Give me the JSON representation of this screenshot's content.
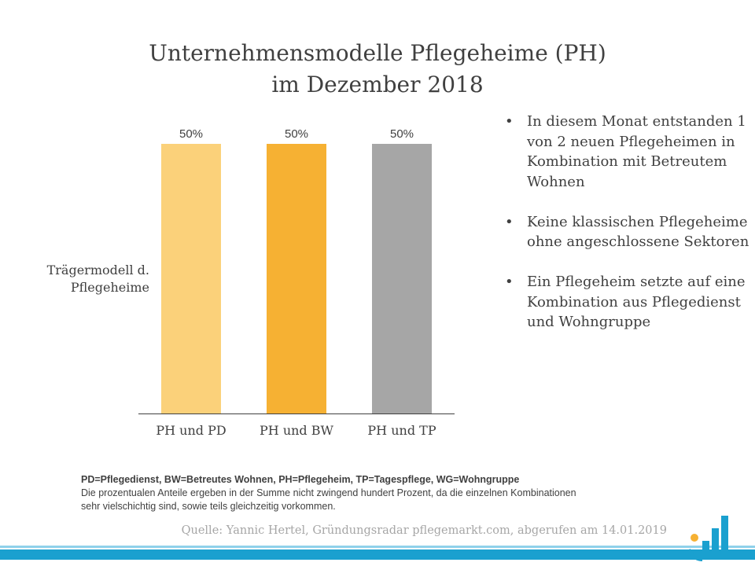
{
  "chart_data": {
    "type": "bar",
    "title": [
      "Unternehmensmodelle Pflegeheime (PH)",
      "im Dezember 2018"
    ],
    "ylabel": [
      "Trägermodell d.",
      "Pflegeheime"
    ],
    "categories": [
      "PH und PD",
      "PH und BW",
      "PH und TP"
    ],
    "values": [
      50,
      50,
      50
    ],
    "data_labels": [
      "50%",
      "50%",
      "50%"
    ],
    "colors": [
      "#fbd17a",
      "#f6b133",
      "#a6a6a6"
    ],
    "ylim": [
      0,
      50
    ],
    "grid": false,
    "legend": "none"
  },
  "bullets": [
    "In diesem Monat entstanden 1 von 2 neuen Pflegeheimen in Kombination mit Betreutem Wohnen",
    "Keine klassischen Pflegeheime ohne angeschlossene Sektoren",
    "Ein Pflegeheim setzte auf eine Kombination aus Pflegedienst und Wohngruppe"
  ],
  "footnotes": {
    "abbreviations": "PD=Pflegedienst, BW=Betreutes Wohnen, PH=Pflegeheim, TP=Tagespflege, WG=Wohngruppe",
    "note_line1": "Die prozentualen Anteile ergeben in der Summe nicht zwingend hundert Prozent, da die einzelnen Kombinationen",
    "note_line2": "sehr vielschichtig sind, sowie teils gleichzeitig vorkommen."
  },
  "source": "Quelle: Yannic Hertel, Gründungsradar pflegemarkt.com, abgerufen am 14.01.2019",
  "colors": {
    "text": "#404040",
    "source_text": "#a6a6a6",
    "band_dark": "#1aa0cf",
    "band_light": "#8fd1ea",
    "logo_blue": "#1aa0cf",
    "logo_dot": "#f6b133"
  }
}
